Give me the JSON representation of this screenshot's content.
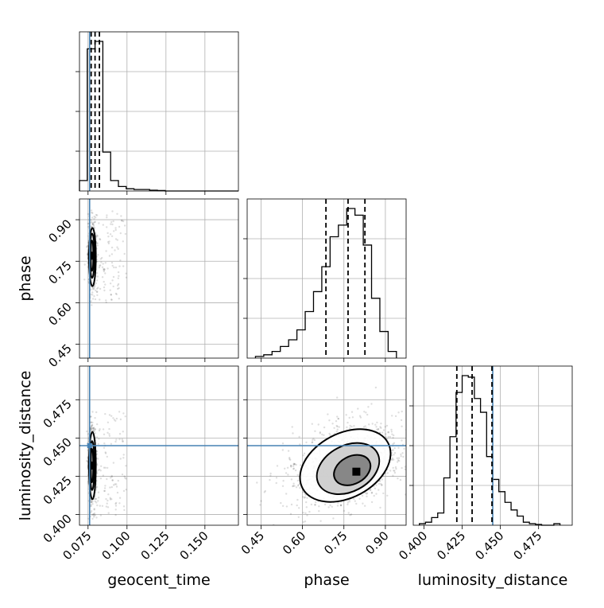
{
  "chart_data": {
    "type": "corner",
    "parameters": [
      "geocent_time",
      "phase",
      "luminosity_distance"
    ],
    "truths": {
      "geocent_time": 0.076,
      "luminosity_distance": 0.445
    },
    "axes": {
      "geocent_time": {
        "range": [
          0.0695,
          0.1715
        ],
        "ticks": [
          0.075,
          0.1,
          0.125,
          0.15
        ],
        "tick_labels": [
          "0.075",
          "0.100",
          "0.125",
          "0.150"
        ]
      },
      "phase": {
        "range": [
          0.4,
          0.975
        ],
        "ticks": [
          0.45,
          0.6,
          0.75,
          0.9
        ],
        "tick_labels": [
          "0.45",
          "0.60",
          "0.75",
          "0.90"
        ]
      },
      "luminosity_distance": {
        "range": [
          0.393,
          0.497
        ],
        "ticks": [
          0.4,
          0.425,
          0.45,
          0.475
        ],
        "tick_labels": [
          "0.400",
          "0.425",
          "0.450",
          "0.475"
        ]
      }
    },
    "marginals": [
      {
        "param": "geocent_time",
        "quantile_lines": [
          0.077,
          0.0795,
          0.0823
        ],
        "hist_edges": [
          0.0695,
          0.0745,
          0.0795,
          0.0845,
          0.0895,
          0.0945,
          0.0995,
          0.1045,
          0.1095,
          0.1145,
          0.1195,
          0.1245,
          0.1715
        ],
        "hist_counts": [
          0.07,
          0.95,
          1.0,
          0.26,
          0.07,
          0.03,
          0.015,
          0.01,
          0.01,
          0.005,
          0.003,
          0.0
        ]
      },
      {
        "param": "phase",
        "quantile_lines": [
          0.685,
          0.765,
          0.826
        ],
        "hist_edges": [
          0.43,
          0.46,
          0.49,
          0.52,
          0.55,
          0.58,
          0.61,
          0.64,
          0.67,
          0.7,
          0.73,
          0.76,
          0.79,
          0.82,
          0.85,
          0.88,
          0.91,
          0.94
        ],
        "hist_counts": [
          0.01,
          0.02,
          0.04,
          0.07,
          0.11,
          0.17,
          0.28,
          0.4,
          0.55,
          0.73,
          0.8,
          0.9,
          0.86,
          0.68,
          0.36,
          0.16,
          0.04
        ]
      },
      {
        "param": "luminosity_distance",
        "quantile_lines": [
          0.4215,
          0.4315,
          0.4445
        ],
        "hist_edges": [
          0.397,
          0.401,
          0.405,
          0.409,
          0.413,
          0.417,
          0.421,
          0.425,
          0.429,
          0.433,
          0.437,
          0.441,
          0.445,
          0.449,
          0.453,
          0.457,
          0.461,
          0.465,
          0.469,
          0.473,
          0.477,
          0.481,
          0.485,
          0.489
        ],
        "hist_counts": [
          0.01,
          0.02,
          0.05,
          0.08,
          0.31,
          0.58,
          0.87,
          0.98,
          0.97,
          0.83,
          0.74,
          0.45,
          0.3,
          0.22,
          0.15,
          0.1,
          0.06,
          0.02,
          0.01,
          0.005,
          0.0,
          0.0,
          0.01
        ]
      }
    ],
    "joint": [
      {
        "x": "geocent_time",
        "y": "phase",
        "mode": [
          0.0775,
          0.77
        ],
        "contours": [
          {
            "center": [
              0.0778,
              0.765
            ],
            "half_width": [
              0.0022,
              0.105
            ]
          },
          {
            "center": [
              0.0776,
              0.77
            ],
            "half_width": [
              0.0016,
              0.08
            ]
          },
          {
            "center": [
              0.0775,
              0.77
            ],
            "half_width": [
              0.001,
              0.055
            ]
          }
        ]
      },
      {
        "x": "geocent_time",
        "y": "luminosity_distance",
        "mode": [
          0.0775,
          0.432
        ],
        "contours": [
          {
            "center": [
              0.0778,
              0.432
            ],
            "half_width": [
              0.0022,
              0.022
            ]
          },
          {
            "center": [
              0.0776,
              0.432
            ],
            "half_width": [
              0.0015,
              0.016
            ]
          },
          {
            "center": [
              0.0775,
              0.432
            ],
            "half_width": [
              0.0009,
              0.011
            ]
          }
        ]
      },
      {
        "x": "phase",
        "y": "luminosity_distance",
        "mode": [
          0.795,
          0.428
        ],
        "contours": [
          {
            "center": [
              0.755,
              0.432
            ],
            "half_width": [
              0.175,
              0.021
            ],
            "tilt_deg": -28
          },
          {
            "center": [
              0.765,
              0.43
            ],
            "half_width": [
              0.12,
              0.015
            ],
            "tilt_deg": -28
          },
          {
            "center": [
              0.78,
              0.429
            ],
            "half_width": [
              0.07,
              0.009
            ],
            "tilt_deg": -28
          }
        ]
      }
    ]
  }
}
